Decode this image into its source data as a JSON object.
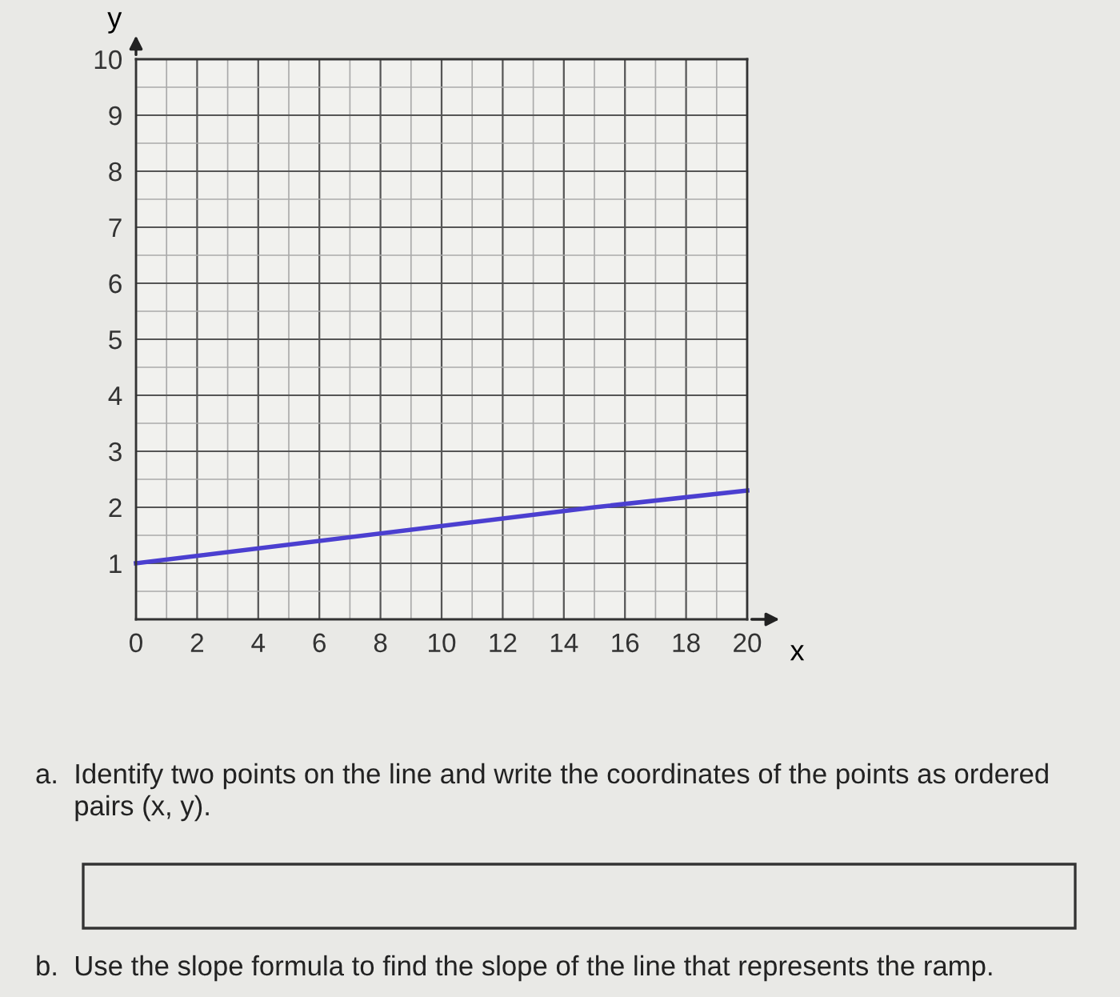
{
  "chart_data": {
    "type": "line",
    "xlabel": "x",
    "ylabel": "y",
    "x": [
      0,
      15,
      20
    ],
    "series": [
      {
        "color": "#4b3fd0",
        "values": [
          1,
          2,
          2.3
        ]
      }
    ],
    "xlim": [
      0,
      20
    ],
    "ylim": [
      0,
      10
    ],
    "xticks": [
      0,
      {
        "value": 1,
        "label": null
      },
      2,
      {
        "value": 3,
        "label": null
      },
      4,
      {
        "value": 5,
        "label": null
      },
      6,
      {
        "value": 7,
        "label": null
      },
      8,
      {
        "value": 9,
        "label": null
      },
      10,
      {
        "value": 11,
        "label": null
      },
      12,
      {
        "value": 13,
        "label": null
      },
      14,
      {
        "value": 15,
        "label": null
      },
      16,
      {
        "value": 17,
        "label": null
      },
      18,
      {
        "value": 19,
        "label": null
      },
      20
    ],
    "yticks": [
      {
        "value": 0.5,
        "label": null
      },
      1,
      {
        "value": 1.5,
        "label": null
      },
      2,
      {
        "value": 2.5,
        "label": null
      },
      3,
      {
        "value": 3.5,
        "label": null
      },
      4,
      {
        "value": 4.5,
        "label": null
      },
      5,
      {
        "value": 5.5,
        "label": null
      },
      6,
      {
        "value": 6.5,
        "label": null
      },
      7,
      {
        "value": 7.5,
        "label": null
      },
      8,
      {
        "value": 8.5,
        "label": null
      },
      9,
      {
        "value": 9.5,
        "label": null
      },
      10
    ],
    "grid": true,
    "marker": "none",
    "line_style": "solid",
    "annotations": [
      "a.  Identify two points on the line and write the coordinates of the points as ordered\n     pairs (x, y).",
      "b.  Use the slope formula to find the slope of the line that represents the ramp."
    ]
  }
}
